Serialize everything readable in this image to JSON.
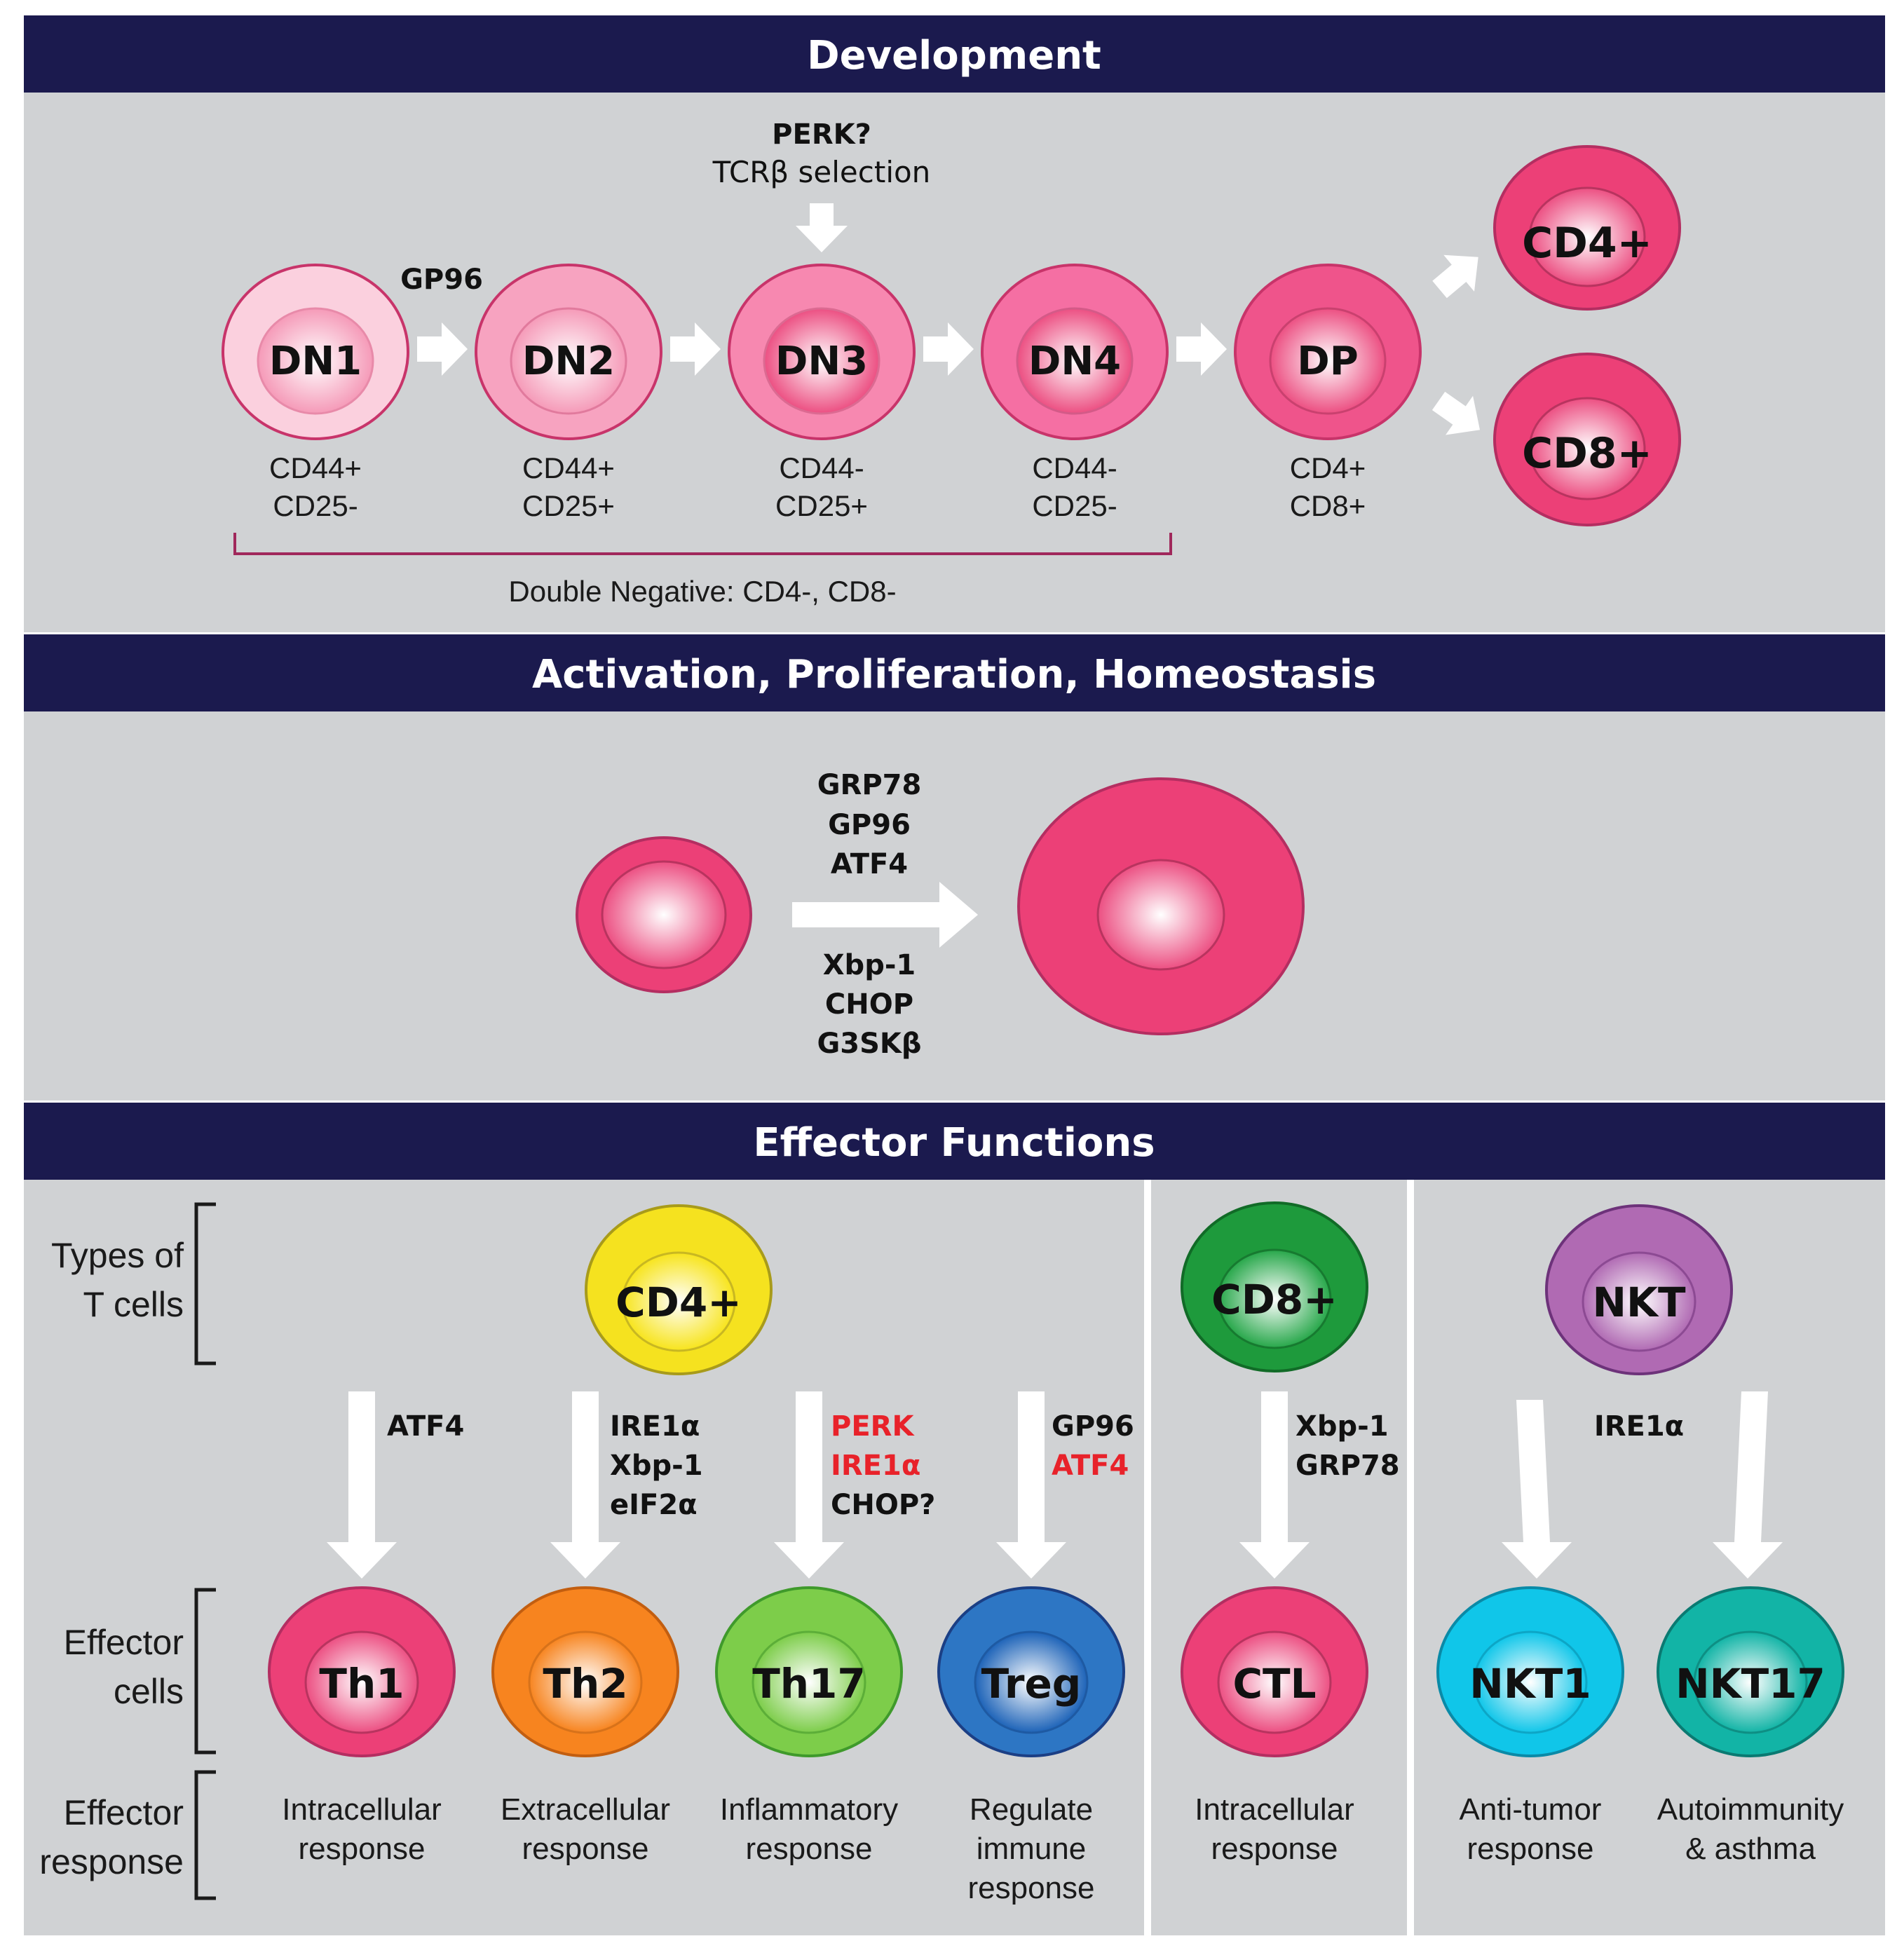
{
  "sections": {
    "development": "Development",
    "activation": "Activation, Proliferation, Homeostasis",
    "effector": "Effector Functions"
  },
  "development": {
    "cells": [
      {
        "label": "DN1",
        "marker_line1": "CD44+",
        "marker_line2": "CD25-",
        "color": "#f9c8d8"
      },
      {
        "label": "DN2",
        "marker_line1": "CD44+",
        "marker_line2": "CD25+",
        "color": "#f7a0bc"
      },
      {
        "label": "DN3",
        "marker_line1": "CD44-",
        "marker_line2": "CD25+",
        "color": "#f685ac"
      },
      {
        "label": "DN4",
        "marker_line1": "CD44-",
        "marker_line2": "CD25-",
        "color": "#f56a9f"
      },
      {
        "label": "DP",
        "marker_line1": "CD4+",
        "marker_line2": "CD8+",
        "color": "#ef4f88"
      }
    ],
    "mature": [
      {
        "label": "CD4+",
        "color": "#ec4077"
      },
      {
        "label": "CD8+",
        "color": "#ec4077"
      }
    ],
    "gp96_label": "GP96",
    "perk_label": "PERK?",
    "tcr_label": "TCRβ selection",
    "bracket_label": "Double Negative: CD4-, CD8-"
  },
  "activation": {
    "factors_top": [
      "GRP78",
      "GP96",
      "ATF4"
    ],
    "factors_bottom": [
      "Xbp-1",
      "CHOP",
      "G3SKβ"
    ]
  },
  "effector": {
    "row_labels": {
      "types_line1": "Types of",
      "types_line2": "T cells",
      "cells_line1": "Effector",
      "cells_line2": "cells",
      "response_line1": "Effector",
      "response_line2": "response"
    },
    "parent_cells": [
      {
        "label": "CD4+",
        "color": "#f7e41c"
      },
      {
        "label": "CD8+",
        "color": "#1e9a3c"
      },
      {
        "label": "NKT",
        "color": "#b06ab3"
      }
    ],
    "branches": [
      {
        "factors": [
          {
            "text": "ATF4",
            "red": false
          }
        ]
      },
      {
        "factors": [
          {
            "text": "IRE1α",
            "red": false
          },
          {
            "text": "Xbp-1",
            "red": false
          },
          {
            "text": "eIF2α",
            "red": false
          }
        ]
      },
      {
        "factors": [
          {
            "text": "PERK",
            "red": true
          },
          {
            "text": "IRE1α",
            "red": true
          },
          {
            "text": "CHOP?",
            "red": false
          }
        ]
      },
      {
        "factors": [
          {
            "text": "GP96",
            "red": false
          },
          {
            "text": "ATF4",
            "red": true
          }
        ]
      },
      {
        "factors": [
          {
            "text": "Xbp-1",
            "red": false
          },
          {
            "text": "GRP78",
            "red": false
          }
        ]
      },
      {
        "factors": [
          {
            "text": "IRE1α",
            "red": false
          }
        ]
      }
    ],
    "effector_cells": [
      {
        "label": "Th1",
        "color": "#ec4077",
        "response": [
          "Intracellular",
          "response"
        ]
      },
      {
        "label": "Th2",
        "color": "#f7841f",
        "response": [
          "Extracellular",
          "response"
        ]
      },
      {
        "label": "Th17",
        "color": "#7dcd4a",
        "response": [
          "Inflammatory",
          "response"
        ]
      },
      {
        "label": "Treg",
        "color": "#2d76c4",
        "response": [
          "Regulate",
          "immune",
          "response"
        ]
      },
      {
        "label": "CTL",
        "color": "#ec4077",
        "response": [
          "Intracellular",
          "response"
        ]
      },
      {
        "label": "NKT1",
        "color": "#10c6e9",
        "response": [
          "Anti-tumor",
          "response"
        ]
      },
      {
        "label": "NKT17",
        "color": "#12b4a6",
        "response": [
          "Autoimmunity",
          "& asthma"
        ]
      }
    ]
  }
}
